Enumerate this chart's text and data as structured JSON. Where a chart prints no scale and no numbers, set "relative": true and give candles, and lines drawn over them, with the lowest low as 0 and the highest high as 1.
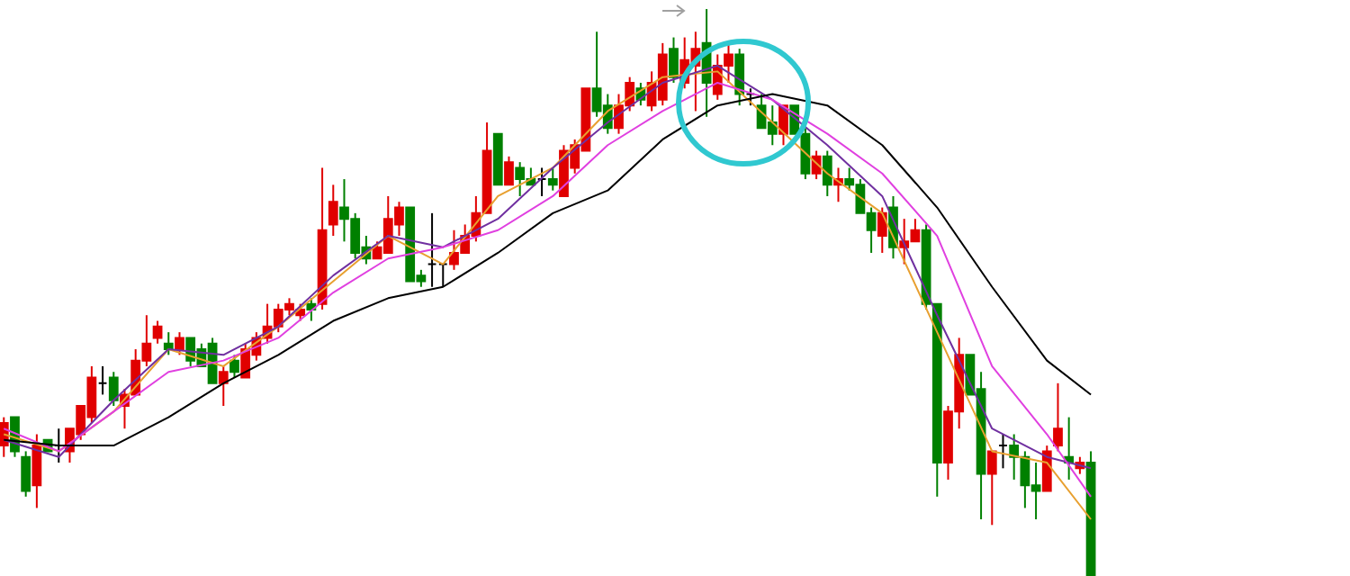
{
  "chart_data": {
    "type": "candlestick",
    "relative": true,
    "categories": [
      null,
      null,
      null,
      null,
      null,
      null,
      null,
      null,
      null,
      null,
      null,
      null,
      null,
      null,
      null,
      null,
      null,
      null,
      null,
      null,
      null,
      null,
      null,
      null,
      null,
      null,
      null,
      null,
      null,
      null,
      null,
      null,
      null,
      null,
      null,
      null,
      null,
      null,
      null,
      null,
      null,
      null,
      null,
      null,
      null,
      null,
      null,
      null,
      null,
      null,
      null,
      null,
      null,
      null,
      null,
      null,
      null,
      null,
      null,
      null,
      null,
      null,
      null,
      null,
      null,
      null,
      null,
      null,
      null,
      null,
      null,
      null,
      null,
      null,
      null,
      null,
      null,
      null,
      null,
      null,
      null,
      null,
      null,
      null,
      null,
      null,
      null,
      null,
      null,
      null,
      null,
      null,
      null,
      null,
      null,
      null,
      null,
      null,
      null,
      null
    ],
    "ohlc": [
      [
        0.23,
        0.28,
        0.21,
        0.27
      ],
      [
        0.28,
        0.28,
        0.21,
        0.22
      ],
      [
        0.21,
        0.22,
        0.14,
        0.15
      ],
      [
        0.16,
        0.25,
        0.12,
        0.23
      ],
      [
        0.24,
        0.24,
        0.22,
        0.22
      ],
      [
        0.23,
        0.26,
        0.2,
        0.23
      ],
      [
        0.22,
        0.26,
        0.2,
        0.26
      ],
      [
        0.25,
        0.3,
        0.24,
        0.3
      ],
      [
        0.28,
        0.37,
        0.27,
        0.35
      ],
      [
        0.34,
        0.37,
        0.32,
        0.34
      ],
      [
        0.35,
        0.36,
        0.3,
        0.31
      ],
      [
        0.3,
        0.33,
        0.26,
        0.32
      ],
      [
        0.32,
        0.4,
        0.32,
        0.38
      ],
      [
        0.38,
        0.46,
        0.37,
        0.41
      ],
      [
        0.42,
        0.45,
        0.41,
        0.44
      ],
      [
        0.41,
        0.43,
        0.39,
        0.4
      ],
      [
        0.4,
        0.43,
        0.39,
        0.42
      ],
      [
        0.42,
        0.42,
        0.37,
        0.38
      ],
      [
        0.4,
        0.41,
        0.37,
        0.37
      ],
      [
        0.41,
        0.42,
        0.34,
        0.34
      ],
      [
        0.34,
        0.37,
        0.3,
        0.36
      ],
      [
        0.38,
        0.39,
        0.35,
        0.36
      ],
      [
        0.35,
        0.41,
        0.35,
        0.4
      ],
      [
        0.39,
        0.43,
        0.38,
        0.42
      ],
      [
        0.42,
        0.48,
        0.41,
        0.44
      ],
      [
        0.44,
        0.48,
        0.43,
        0.47
      ],
      [
        0.47,
        0.49,
        0.46,
        0.48
      ],
      [
        0.46,
        0.48,
        0.45,
        0.47
      ],
      [
        0.48,
        0.49,
        0.45,
        0.47
      ],
      [
        0.48,
        0.72,
        0.47,
        0.61
      ],
      [
        0.62,
        0.69,
        0.6,
        0.66
      ],
      [
        0.65,
        0.7,
        0.59,
        0.63
      ],
      [
        0.63,
        0.64,
        0.56,
        0.57
      ],
      [
        0.58,
        0.6,
        0.55,
        0.56
      ],
      [
        0.56,
        0.59,
        0.56,
        0.58
      ],
      [
        0.57,
        0.67,
        0.57,
        0.63
      ],
      [
        0.62,
        0.66,
        0.6,
        0.65
      ],
      [
        0.65,
        0.65,
        0.52,
        0.52
      ],
      [
        0.53,
        0.54,
        0.51,
        0.52
      ],
      [
        0.55,
        0.64,
        0.51,
        0.55
      ],
      [
        0.55,
        0.55,
        0.51,
        0.55
      ],
      [
        0.55,
        0.61,
        0.54,
        0.57
      ],
      [
        0.57,
        0.62,
        0.57,
        0.6
      ],
      [
        0.6,
        0.67,
        0.59,
        0.64
      ],
      [
        0.64,
        0.8,
        0.64,
        0.75
      ],
      [
        0.78,
        0.78,
        0.69,
        0.69
      ],
      [
        0.69,
        0.74,
        0.69,
        0.73
      ],
      [
        0.72,
        0.73,
        0.67,
        0.7
      ],
      [
        0.7,
        0.72,
        0.69,
        0.69
      ],
      [
        0.7,
        0.72,
        0.67,
        0.7
      ],
      [
        0.7,
        0.72,
        0.68,
        0.69
      ],
      [
        0.67,
        0.76,
        0.67,
        0.75
      ],
      [
        0.72,
        0.77,
        0.71,
        0.76
      ],
      [
        0.75,
        0.86,
        0.75,
        0.86
      ],
      [
        0.86,
        0.96,
        0.81,
        0.82
      ],
      [
        0.83,
        0.85,
        0.78,
        0.79
      ],
      [
        0.79,
        0.85,
        0.78,
        0.83
      ],
      [
        0.83,
        0.88,
        0.82,
        0.87
      ],
      [
        0.86,
        0.87,
        0.83,
        0.84
      ],
      [
        0.83,
        0.89,
        0.82,
        0.87
      ],
      [
        0.84,
        0.94,
        0.83,
        0.92
      ],
      [
        0.93,
        0.95,
        0.87,
        0.88
      ],
      [
        0.87,
        0.95,
        0.86,
        0.91
      ],
      [
        0.9,
        0.96,
        0.82,
        0.93
      ],
      [
        0.94,
        1,
        0.81,
        0.87
      ],
      [
        0.85,
        0.92,
        0.84,
        0.9
      ],
      [
        0.9,
        0.94,
        0.87,
        0.92
      ],
      [
        0.92,
        0.93,
        0.83,
        0.85
      ],
      [
        0.85,
        0.86,
        0.83,
        0.85
      ],
      [
        0.83,
        0.85,
        0.79,
        0.79
      ],
      [
        0.8,
        0.83,
        0.76,
        0.78
      ],
      [
        0.78,
        0.83,
        0.76,
        0.83
      ],
      [
        0.83,
        0.83,
        0.78,
        0.78
      ],
      [
        0.78,
        0.79,
        0.7,
        0.71
      ],
      [
        0.71,
        0.75,
        0.7,
        0.74
      ],
      [
        0.74,
        0.75,
        0.67,
        0.69
      ],
      [
        0.69,
        0.72,
        0.66,
        0.7
      ],
      [
        0.7,
        0.72,
        0.68,
        0.69
      ],
      [
        0.69,
        0.7,
        0.64,
        0.64
      ],
      [
        0.64,
        0.65,
        0.57,
        0.61
      ],
      [
        0.6,
        0.65,
        0.57,
        0.64
      ],
      [
        0.65,
        0.67,
        0.56,
        0.58
      ],
      [
        0.58,
        0.63,
        0.55,
        0.59
      ],
      [
        0.59,
        0.63,
        0.59,
        0.61
      ],
      [
        0.61,
        0.62,
        0.47,
        0.48
      ],
      [
        0.48,
        0.48,
        0.14,
        0.2
      ],
      [
        0.2,
        0.3,
        0.17,
        0.29
      ],
      [
        0.29,
        0.42,
        0.26,
        0.39
      ],
      [
        0.39,
        0.39,
        0.32,
        0.32
      ],
      [
        0.33,
        0.36,
        0.1,
        0.18
      ],
      [
        0.18,
        0.22,
        0.09,
        0.22
      ],
      [
        0.23,
        0.25,
        0.19,
        0.23
      ],
      [
        0.23,
        0.25,
        0.17,
        0.21
      ],
      [
        0.21,
        0.22,
        0.12,
        0.16
      ],
      [
        0.16,
        0.2,
        0.1,
        0.15
      ],
      [
        0.15,
        0.23,
        0.15,
        0.22
      ],
      [
        0.23,
        0.34,
        0.22,
        0.26
      ],
      [
        0.21,
        0.28,
        0.17,
        0.2
      ],
      [
        0.19,
        0.21,
        0.18,
        0.2
      ],
      [
        0.2,
        0.22,
        0,
        0
      ]
    ],
    "colors": [
      "#e00000",
      "#008000",
      "#008000",
      "#e00000",
      "#008000",
      "#000000",
      "#e00000",
      "#e00000",
      "#e00000",
      "#000000",
      "#008000",
      "#e00000",
      "#e00000",
      "#e00000",
      "#e00000",
      "#008000",
      "#e00000",
      "#008000",
      "#008000",
      "#008000",
      "#e00000",
      "#008000",
      "#e00000",
      "#e00000",
      "#e00000",
      "#e00000",
      "#e00000",
      "#e00000",
      "#008000",
      "#e00000",
      "#e00000",
      "#008000",
      "#008000",
      "#008000",
      "#e00000",
      "#e00000",
      "#e00000",
      "#008000",
      "#008000",
      "#000000",
      "#000000",
      "#e00000",
      "#e00000",
      "#e00000",
      "#e00000",
      "#008000",
      "#e00000",
      "#008000",
      "#008000",
      "#000000",
      "#008000",
      "#e00000",
      "#e00000",
      "#e00000",
      "#008000",
      "#008000",
      "#e00000",
      "#e00000",
      "#008000",
      "#e00000",
      "#e00000",
      "#008000",
      "#e00000",
      "#e00000",
      "#008000",
      "#e00000",
      "#e00000",
      "#008000",
      "#000000",
      "#008000",
      "#008000",
      "#e00000",
      "#008000",
      "#008000",
      "#e00000",
      "#008000",
      "#e00000",
      "#008000",
      "#008000",
      "#008000",
      "#e00000",
      "#008000",
      "#e00000",
      "#e00000",
      "#008000",
      "#008000",
      "#e00000",
      "#e00000",
      "#008000",
      "#008000",
      "#e00000",
      "#000000",
      "#008000",
      "#008000",
      "#008000",
      "#e00000",
      "#e00000",
      "#008000",
      "#e00000",
      "#008000"
    ],
    "series": [
      {
        "type": "line",
        "color": "#e8a030",
        "values": [
          0.25,
          null,
          null,
          null,
          null,
          0.22,
          null,
          null,
          null,
          null,
          0.29,
          null,
          null,
          null,
          null,
          0.4,
          null,
          null,
          null,
          null,
          0.37,
          null,
          null,
          null,
          null,
          0.44,
          null,
          null,
          null,
          null,
          0.52,
          null,
          null,
          null,
          null,
          0.6,
          null,
          null,
          null,
          null,
          0.55,
          null,
          null,
          null,
          null,
          0.67,
          null,
          null,
          null,
          null,
          0.72,
          null,
          null,
          null,
          null,
          0.82,
          null,
          null,
          null,
          null,
          0.88,
          null,
          null,
          null,
          null,
          0.89,
          null,
          null,
          null,
          null,
          0.8,
          null,
          null,
          null,
          null,
          0.71,
          null,
          null,
          null,
          null,
          0.64,
          null,
          null,
          null,
          null,
          0.43,
          null,
          null,
          null,
          null,
          0.22,
          null,
          null,
          null,
          null,
          0.2,
          null,
          null,
          null,
          0.1
        ]
      },
      {
        "type": "line",
        "color": "#7030a0",
        "values": [
          0.24,
          null,
          null,
          null,
          null,
          0.21,
          null,
          null,
          null,
          null,
          0.31,
          null,
          null,
          null,
          null,
          0.4,
          null,
          null,
          null,
          null,
          0.39,
          null,
          null,
          null,
          null,
          0.44,
          null,
          null,
          null,
          null,
          0.53,
          null,
          null,
          null,
          null,
          0.6,
          null,
          null,
          null,
          null,
          0.58,
          null,
          null,
          null,
          null,
          0.63,
          null,
          null,
          null,
          null,
          0.72,
          null,
          null,
          null,
          null,
          0.8,
          null,
          null,
          null,
          null,
          0.87,
          null,
          null,
          null,
          null,
          0.9,
          null,
          null,
          null,
          null,
          0.84,
          null,
          null,
          null,
          null,
          0.76,
          null,
          null,
          null,
          null,
          0.67,
          null,
          null,
          null,
          null,
          0.46,
          null,
          null,
          null,
          null,
          0.26,
          null,
          null,
          null,
          null,
          0.21,
          null,
          null,
          null,
          0.19
        ]
      },
      {
        "type": "line",
        "color": "#e040e0",
        "values": [
          0.26,
          null,
          null,
          null,
          null,
          0.22,
          null,
          null,
          null,
          null,
          0.29,
          null,
          null,
          null,
          null,
          0.36,
          null,
          null,
          null,
          null,
          0.38,
          null,
          null,
          null,
          null,
          0.42,
          null,
          null,
          null,
          null,
          0.5,
          null,
          null,
          null,
          null,
          0.56,
          null,
          null,
          null,
          null,
          0.58,
          null,
          null,
          null,
          null,
          0.61,
          null,
          null,
          null,
          null,
          0.67,
          null,
          null,
          null,
          null,
          0.76,
          null,
          null,
          null,
          null,
          0.82,
          null,
          null,
          null,
          null,
          0.87,
          null,
          null,
          null,
          null,
          0.84,
          null,
          null,
          null,
          null,
          0.78,
          null,
          null,
          null,
          null,
          0.71,
          null,
          null,
          null,
          null,
          0.6,
          null,
          null,
          null,
          null,
          0.37,
          null,
          null,
          null,
          null,
          0.25,
          null,
          null,
          null,
          0.14
        ]
      },
      {
        "type": "line",
        "color": "#000000",
        "values": [
          0.24,
          null,
          null,
          null,
          null,
          0.23,
          null,
          null,
          null,
          null,
          0.23,
          null,
          null,
          null,
          null,
          0.28,
          null,
          null,
          null,
          null,
          0.34,
          null,
          null,
          null,
          null,
          0.39,
          null,
          null,
          null,
          null,
          0.45,
          null,
          null,
          null,
          null,
          0.49,
          null,
          null,
          null,
          null,
          0.51,
          null,
          null,
          null,
          null,
          0.57,
          null,
          null,
          null,
          null,
          0.64,
          null,
          null,
          null,
          null,
          0.68,
          null,
          null,
          null,
          null,
          0.77,
          null,
          null,
          null,
          null,
          0.83,
          null,
          null,
          null,
          null,
          0.85,
          null,
          null,
          null,
          null,
          0.83,
          null,
          null,
          null,
          null,
          0.76,
          null,
          null,
          null,
          null,
          0.65,
          null,
          null,
          null,
          null,
          0.51,
          null,
          null,
          null,
          null,
          0.38,
          null,
          null,
          null,
          0.32
        ]
      }
    ]
  }
}
